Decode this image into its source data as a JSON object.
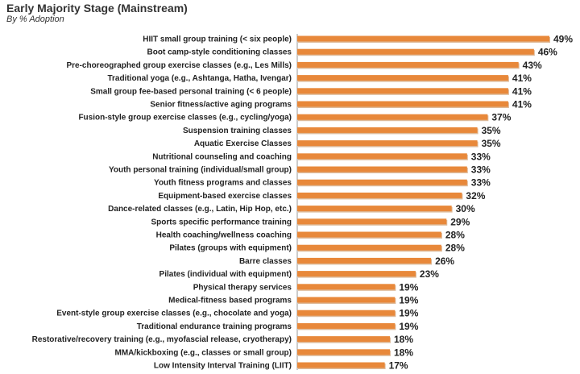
{
  "chart_data": {
    "type": "bar",
    "orientation": "horizontal",
    "title": "Early Majority Stage (Mainstream)",
    "subtitle": "By % Adoption",
    "xlim": [
      0,
      50
    ],
    "bar_color": "#E8883A",
    "bar_shadow_color": "#B5651D",
    "categories": [
      "HIIT small group training (< six people)",
      "Boot camp-style conditioning classes",
      "Pre-choreographed group exercise classes (e.g., Les Mills)",
      "Traditional yoga (e.g., Ashtanga, Hatha, Ivengar)",
      "Small group fee-based personal training (< 6 people)",
      "Senior fitness/active aging programs",
      "Fusion-style group exercise classes (e.g., cycling/yoga)",
      "Suspension training classes",
      "Aquatic Exercise Classes",
      "Nutritional counseling and coaching",
      "Youth personal training (individual/small group)",
      "Youth fitness programs and classes",
      "Equipment-based exercise classes",
      "Dance-related classes (e.g., Latin, Hip Hop, etc.)",
      "Sports specific performance training",
      "Health coaching/wellness coaching",
      "Pilates (groups with equipment)",
      "Barre classes",
      "Pilates (individual with equipment)",
      "Physical therapy services",
      "Medical-fitness based programs",
      "Event-style group exercise classes (e.g., chocolate and yoga)",
      "Traditional endurance training programs",
      "Restorative/recovery training (e.g., myofascial release, cryotherapy)",
      "MMA/kickboxing (e.g., classes or small group)",
      "Low Intensity Interval Training (LIIT)"
    ],
    "values": [
      49,
      46,
      43,
      41,
      41,
      41,
      37,
      35,
      35,
      33,
      33,
      33,
      32,
      30,
      29,
      28,
      28,
      26,
      23,
      19,
      19,
      19,
      19,
      18,
      18,
      17
    ],
    "value_labels": [
      "49%",
      "46%",
      "43%",
      "41%",
      "41%",
      "41%",
      "37%",
      "35%",
      "35%",
      "33%",
      "33%",
      "33%",
      "32%",
      "30%",
      "29%",
      "28%",
      "28%",
      "26%",
      "23%",
      "19%",
      "19%",
      "19%",
      "19%",
      "18%",
      "18%",
      "17%"
    ]
  }
}
